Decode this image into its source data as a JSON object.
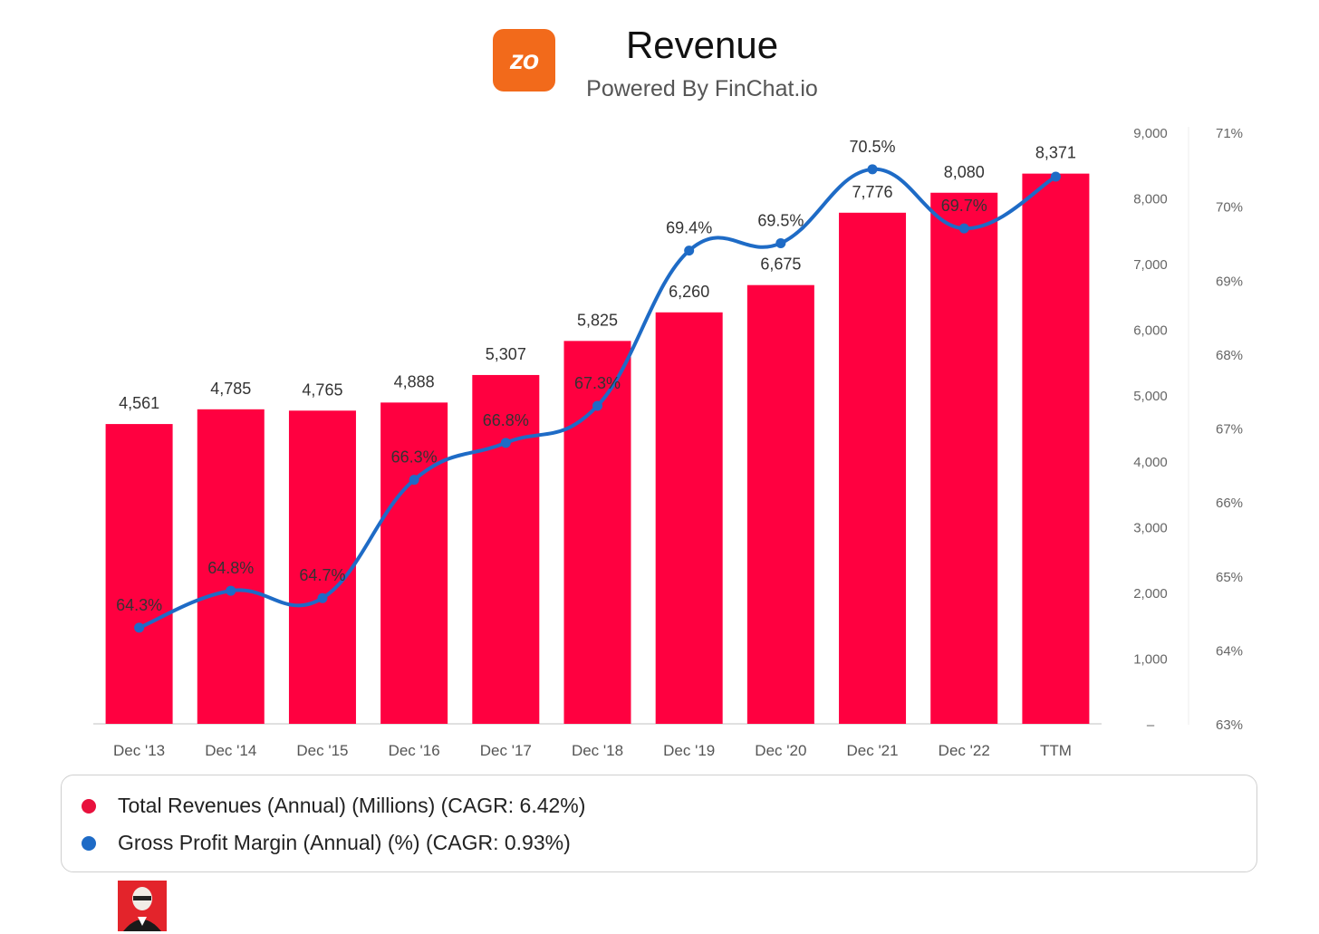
{
  "header": {
    "logo_text": "zo",
    "title": "Revenue",
    "subtitle": "Powered By FinChat.io"
  },
  "colors": {
    "bar": "#ff0040",
    "line": "#1e6bc6",
    "logo": "#f26a1b"
  },
  "chart_data": {
    "type": "bar",
    "title": "Revenue",
    "categories": [
      "Dec '13",
      "Dec '14",
      "Dec '15",
      "Dec '16",
      "Dec '17",
      "Dec '18",
      "Dec '19",
      "Dec '20",
      "Dec '21",
      "Dec '22",
      "TTM"
    ],
    "series": [
      {
        "name": "Total Revenues (Annual) (Millions) (CAGR: 6.42%)",
        "type": "bar",
        "axis": "left",
        "values": [
          4561,
          4785,
          4765,
          4888,
          5307,
          5825,
          6260,
          6675,
          7776,
          8080,
          8371
        ],
        "labels": [
          "4,561",
          "4,785",
          "4,765",
          "4,888",
          "5,307",
          "5,825",
          "6,260",
          "6,675",
          "7,776",
          "8,080",
          "8,371"
        ]
      },
      {
        "name": "Gross Profit Margin (Annual) (%) (CAGR: 0.93%)",
        "type": "line",
        "axis": "right",
        "values": [
          64.3,
          64.8,
          64.7,
          66.3,
          66.8,
          67.3,
          69.4,
          69.5,
          70.5,
          69.7,
          70.4
        ],
        "labels": [
          "64.3%",
          "64.8%",
          "64.7%",
          "66.3%",
          "66.8%",
          "67.3%",
          "69.4%",
          "69.5%",
          "70.5%",
          "69.7%",
          ""
        ]
      }
    ],
    "y_left": {
      "ylim": [
        0,
        9000
      ],
      "ticks": [
        "–",
        "1,000",
        "2,000",
        "3,000",
        "4,000",
        "5,000",
        "6,000",
        "7,000",
        "8,000",
        "9,000"
      ]
    },
    "y_right": {
      "ylim": [
        63,
        71
      ],
      "ticks": [
        "63%",
        "64%",
        "65%",
        "66%",
        "67%",
        "68%",
        "69%",
        "70%",
        "71%"
      ]
    },
    "legend_position": "bottom",
    "grid": false
  },
  "legend": {
    "items": [
      {
        "label": "Total Revenues (Annual) (Millions) (CAGR: 6.42%)",
        "color": "#e8113d"
      },
      {
        "label": "Gross Profit Margin (Annual) (%) (CAGR: 0.93%)",
        "color": "#1e6bc6"
      }
    ]
  }
}
